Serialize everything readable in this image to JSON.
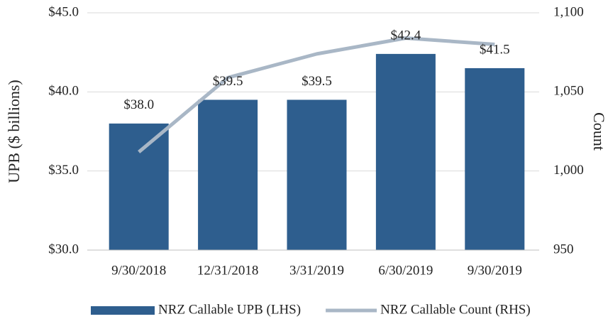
{
  "chart_data": {
    "type": "bar",
    "categories": [
      "9/30/2018",
      "12/31/2018",
      "3/31/2019",
      "6/30/2019",
      "9/30/2019"
    ],
    "series": [
      {
        "name": "NRZ Callable UPB (LHS)",
        "type": "bar",
        "color": "#2e5e8e",
        "axis": "y",
        "values": [
          38.0,
          39.5,
          39.5,
          42.4,
          41.5
        ],
        "value_labels": [
          "$38.0",
          "$39.5",
          "$39.5",
          "$42.4",
          "$41.5"
        ]
      },
      {
        "name": "NRZ Callable Count (RHS)",
        "type": "line",
        "color": "#a9b7c6",
        "axis": "y2",
        "values": [
          1012,
          1059,
          1074,
          1084,
          1080
        ]
      }
    ],
    "ylabel": "UPB ($ billions)",
    "y2label": "Count",
    "ylim": [
      30,
      45
    ],
    "yticks": [
      {
        "value": 30,
        "label": "$30.0"
      },
      {
        "value": 35,
        "label": "$35.0"
      },
      {
        "value": 40,
        "label": "$40.0"
      },
      {
        "value": 45,
        "label": "$45.0"
      }
    ],
    "y2lim": [
      950,
      1100
    ],
    "y2ticks": [
      950,
      {
        "value": 1000,
        "label": "1,000"
      },
      {
        "value": 1050,
        "label": "1,050"
      },
      {
        "value": 1100,
        "label": "1,100"
      }
    ],
    "grid": true,
    "legend": "bottom"
  }
}
